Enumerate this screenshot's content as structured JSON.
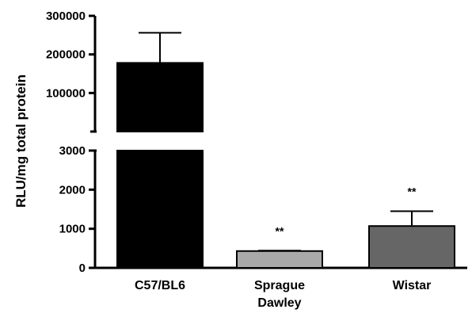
{
  "chart_data": {
    "type": "bar",
    "ylabel": "RLU/mg  total protein",
    "y_axis_break": {
      "lower_range": [
        0,
        3000
      ],
      "upper_range": [
        0,
        300000
      ]
    },
    "lower_ticks": [
      0,
      1000,
      2000,
      3000
    ],
    "upper_ticks": [
      100000,
      200000,
      300000
    ],
    "categories": [
      "C57/BL6",
      "Sprague\nDawley",
      "Wistar"
    ],
    "values": [
      178000,
      430,
      1070
    ],
    "errors": [
      78000,
      10,
      380
    ],
    "significance": [
      "",
      "**",
      "**"
    ],
    "colors": [
      "#000000",
      "#a9a9a9",
      "#666666"
    ]
  }
}
